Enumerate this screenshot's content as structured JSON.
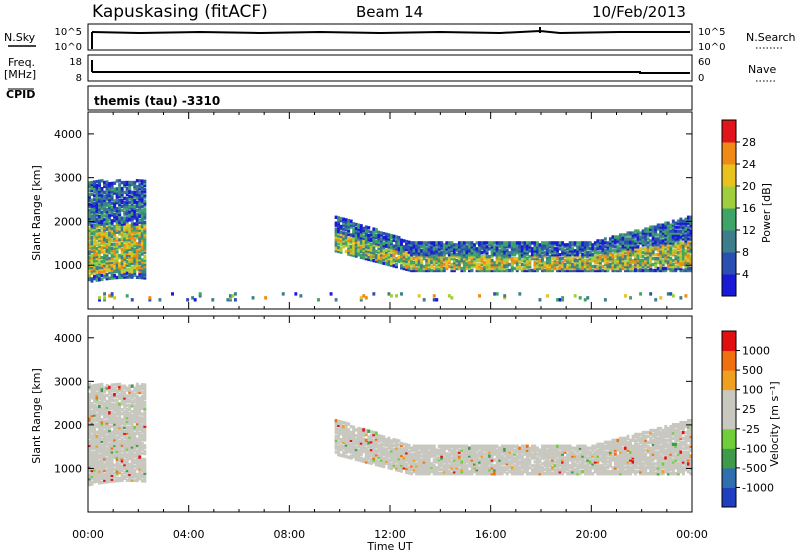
{
  "header": {
    "station": "Kapuskasing (fitACF)",
    "beam": "Beam 14",
    "date": "10/Feb/2013"
  },
  "top_panels": {
    "nsky_label": "N.Sky",
    "nsky_ticks": [
      "10^5",
      "10^0"
    ],
    "nsearch_ticks": [
      "10^5",
      "10^0"
    ],
    "nsearch_label": "N.Search",
    "freq_label": "Freq.",
    "freq_unit": "[MHz]",
    "freq_ticks": [
      "18",
      "8"
    ],
    "nave_ticks": [
      "60",
      "0"
    ],
    "nave_label": "Nave",
    "cpid_label": "CPID",
    "cpid_value": "themis (tau) -3310"
  },
  "chart_data": [
    {
      "type": "heatmap",
      "title": "",
      "ylabel": "Slant Range [km]",
      "xlabel": "Time UT",
      "ylim": [
        0,
        4500
      ],
      "yticks": [
        "1000",
        "2000",
        "3000",
        "4000"
      ],
      "xticks": [
        "00:00",
        "04:00",
        "08:00",
        "12:00",
        "16:00",
        "20:00",
        "00:00"
      ],
      "colorbar": {
        "label": "Power [dB]",
        "ticks": [
          "4",
          "8",
          "12",
          "16",
          "20",
          "24",
          "28"
        ],
        "colors": [
          "#1a1ad6",
          "#2a4fb2",
          "#3d7d8c",
          "#3fa566",
          "#9fcf3c",
          "#e8c21e",
          "#f08a16",
          "#e0141a"
        ]
      },
      "echo_regions": [
        {
          "t_start": 0.0,
          "t_end": 2.3,
          "r_min": 600,
          "r_max": 2900,
          "level": "mixed"
        },
        {
          "t_start": 9.8,
          "t_end": 24.0,
          "r_min": 850,
          "r_max": 2200,
          "level": "mixed"
        },
        {
          "t_start": 0.0,
          "t_end": 24.0,
          "r_min": 180,
          "r_max": 350,
          "level": "sparse"
        }
      ]
    },
    {
      "type": "heatmap",
      "title": "",
      "ylabel": "Slant Range [km]",
      "xlabel": "Time UT",
      "ylim": [
        0,
        4500
      ],
      "yticks": [
        "1000",
        "2000",
        "3000",
        "4000"
      ],
      "xticks": [
        "00:00",
        "04:00",
        "08:00",
        "12:00",
        "16:00",
        "20:00",
        "00:00"
      ],
      "colorbar": {
        "label": "Velocity [m s⁻¹]",
        "ticks": [
          "1000",
          "500",
          "100",
          "25",
          "-25",
          "-100",
          "-500",
          "-1000"
        ],
        "colors": [
          "#1f3fbf",
          "#2f6fb0",
          "#3f9a4a",
          "#6fce3a",
          "#c8c8c0",
          "#c8c8c0",
          "#f0a020",
          "#f07010",
          "#e01010"
        ]
      },
      "echo_regions": [
        {
          "t_start": 0.0,
          "t_end": 2.3,
          "r_min": 600,
          "r_max": 2900,
          "level": "ground-scatter"
        },
        {
          "t_start": 9.8,
          "t_end": 24.0,
          "r_min": 850,
          "r_max": 2200,
          "level": "ground-scatter"
        }
      ]
    }
  ]
}
